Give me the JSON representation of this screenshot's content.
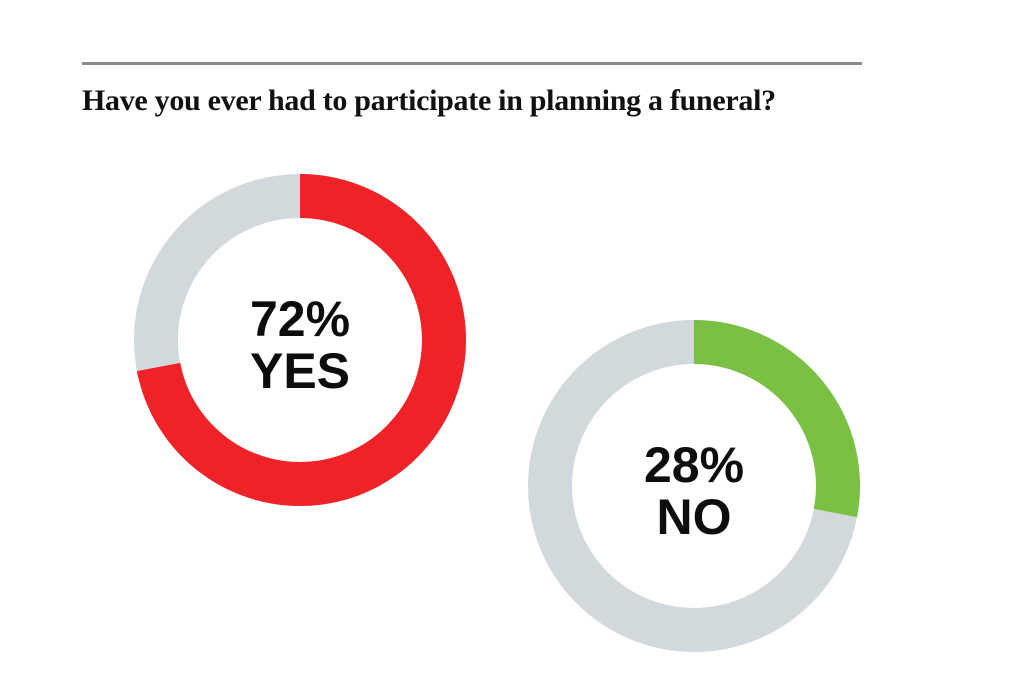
{
  "chart_data": {
    "type": "pie",
    "title": "Have you ever had to participate in planning a funeral?",
    "track_color": "#d1d9dd",
    "charts": [
      {
        "category": "YES",
        "value": 72,
        "percent_label": "72%",
        "color": "#ee2227"
      },
      {
        "category": "NO",
        "value": 28,
        "percent_label": "28%",
        "color": "#7ac143"
      }
    ]
  }
}
